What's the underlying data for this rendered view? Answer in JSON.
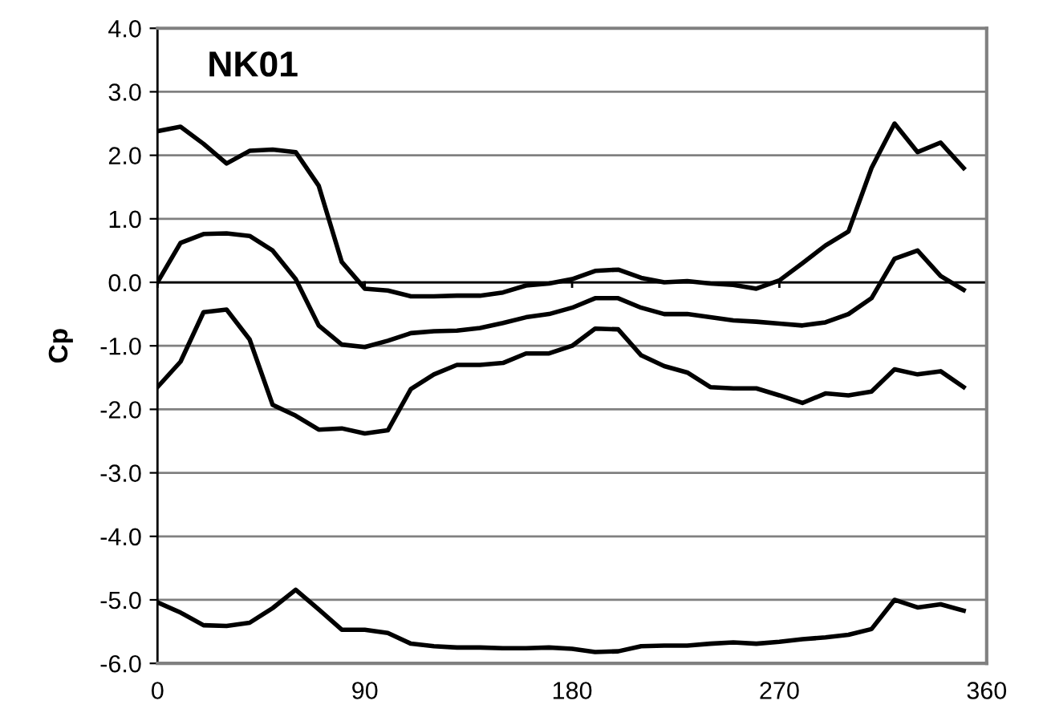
{
  "chart_data": {
    "type": "line",
    "title": "NK01",
    "ylabel": "Cp",
    "x": [
      0,
      10,
      20,
      30,
      40,
      50,
      60,
      70,
      80,
      90,
      100,
      110,
      120,
      130,
      140,
      150,
      160,
      170,
      180,
      190,
      200,
      210,
      220,
      230,
      240,
      250,
      260,
      270,
      280,
      290,
      300,
      310,
      320,
      330,
      340,
      350
    ],
    "series": [
      {
        "color": "#000000",
        "values": [
          2.38,
          2.45,
          2.18,
          1.87,
          2.07,
          2.09,
          2.05,
          1.52,
          0.32,
          -0.1,
          -0.13,
          -0.22,
          -0.22,
          -0.21,
          -0.21,
          -0.16,
          -0.05,
          -0.02,
          0.05,
          0.18,
          0.2,
          0.07,
          0.0,
          0.02,
          -0.02,
          -0.04,
          -0.1,
          0.03,
          0.3,
          0.58,
          0.8,
          1.8,
          2.5,
          2.05,
          2.2,
          1.8
        ]
      },
      {
        "color": "#000000",
        "values": [
          0.0,
          0.62,
          0.76,
          0.77,
          0.73,
          0.5,
          0.05,
          -0.68,
          -0.98,
          -1.02,
          -0.92,
          -0.8,
          -0.77,
          -0.76,
          -0.72,
          -0.64,
          -0.55,
          -0.5,
          -0.4,
          -0.25,
          -0.25,
          -0.4,
          -0.5,
          -0.5,
          -0.55,
          -0.6,
          -0.62,
          -0.65,
          -0.68,
          -0.63,
          -0.5,
          -0.25,
          0.37,
          0.5,
          0.1,
          -0.12
        ]
      },
      {
        "color": "#000000",
        "values": [
          -1.65,
          -1.25,
          -0.47,
          -0.43,
          -0.9,
          -1.93,
          -2.1,
          -2.32,
          -2.3,
          -2.38,
          -2.33,
          -1.68,
          -1.45,
          -1.3,
          -1.3,
          -1.27,
          -1.12,
          -1.12,
          -1.0,
          -0.73,
          -0.74,
          -1.15,
          -1.32,
          -1.42,
          -1.65,
          -1.67,
          -1.67,
          -1.78,
          -1.9,
          -1.75,
          -1.78,
          -1.72,
          -1.37,
          -1.45,
          -1.4,
          -1.65
        ]
      },
      {
        "color": "#000000",
        "values": [
          -5.04,
          -5.2,
          -5.4,
          -5.41,
          -5.36,
          -5.13,
          -4.84,
          -5.15,
          -5.47,
          -5.47,
          -5.52,
          -5.69,
          -5.73,
          -5.75,
          -5.75,
          -5.76,
          -5.76,
          -5.75,
          -5.77,
          -5.82,
          -5.81,
          -5.73,
          -5.72,
          -5.72,
          -5.69,
          -5.67,
          -5.69,
          -5.66,
          -5.62,
          -5.59,
          -5.55,
          -5.46,
          -5.0,
          -5.12,
          -5.07,
          -5.17
        ]
      }
    ],
    "xlim": [
      0,
      360
    ],
    "xticks": [
      0,
      90,
      180,
      270,
      360
    ],
    "ylim": [
      -6,
      4
    ],
    "yticks": [
      {
        "value": -6,
        "label": "-6.0"
      },
      {
        "value": -5,
        "label": "-5.0"
      },
      {
        "value": -4,
        "label": "-4.0"
      },
      {
        "value": -3,
        "label": "-3.0"
      },
      {
        "value": -2,
        "label": "-2.0"
      },
      {
        "value": -1,
        "label": "-1.0"
      },
      {
        "value": 0,
        "label": "0.0"
      },
      {
        "value": 1,
        "label": "1.0"
      },
      {
        "value": 2,
        "label": "2.0"
      },
      {
        "value": 3,
        "label": "3.0"
      },
      {
        "value": 4,
        "label": "4.0"
      }
    ],
    "grid": "y",
    "ref_lines": [
      {
        "axis": "y",
        "value": 0,
        "color": "#000000"
      }
    ]
  }
}
